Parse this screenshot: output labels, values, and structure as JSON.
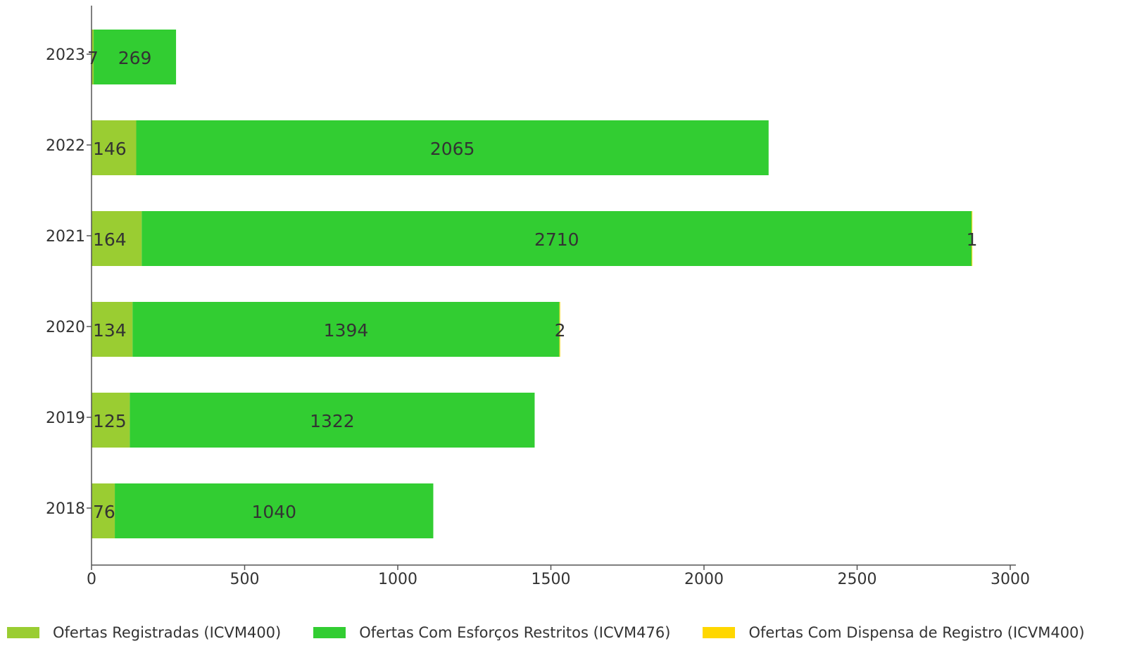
{
  "chart_data": {
    "type": "bar",
    "orientation": "horizontal",
    "stacked": true,
    "categories": [
      "2023",
      "2022",
      "2021",
      "2020",
      "2019",
      "2018"
    ],
    "series": [
      {
        "name": "Ofertas Registradas (ICVM400)",
        "color": "#9acd32",
        "values": [
          7,
          146,
          164,
          134,
          125,
          76
        ]
      },
      {
        "name": "Ofertas Com Esforços Restritos (ICVM476)",
        "color": "#32cd32",
        "values": [
          269,
          2065,
          2710,
          1394,
          1322,
          1040
        ]
      },
      {
        "name": "Ofertas Com Dispensa de Registro (ICVM400)",
        "color": "#ffd700",
        "values": [
          null,
          null,
          1,
          2,
          null,
          null
        ]
      }
    ],
    "xlim": [
      0,
      3000
    ],
    "xticks": [
      0,
      500,
      1000,
      1500,
      2000,
      2500,
      3000
    ],
    "grid": false,
    "legend_position": "bottom",
    "title": "",
    "xlabel": "",
    "ylabel": ""
  }
}
